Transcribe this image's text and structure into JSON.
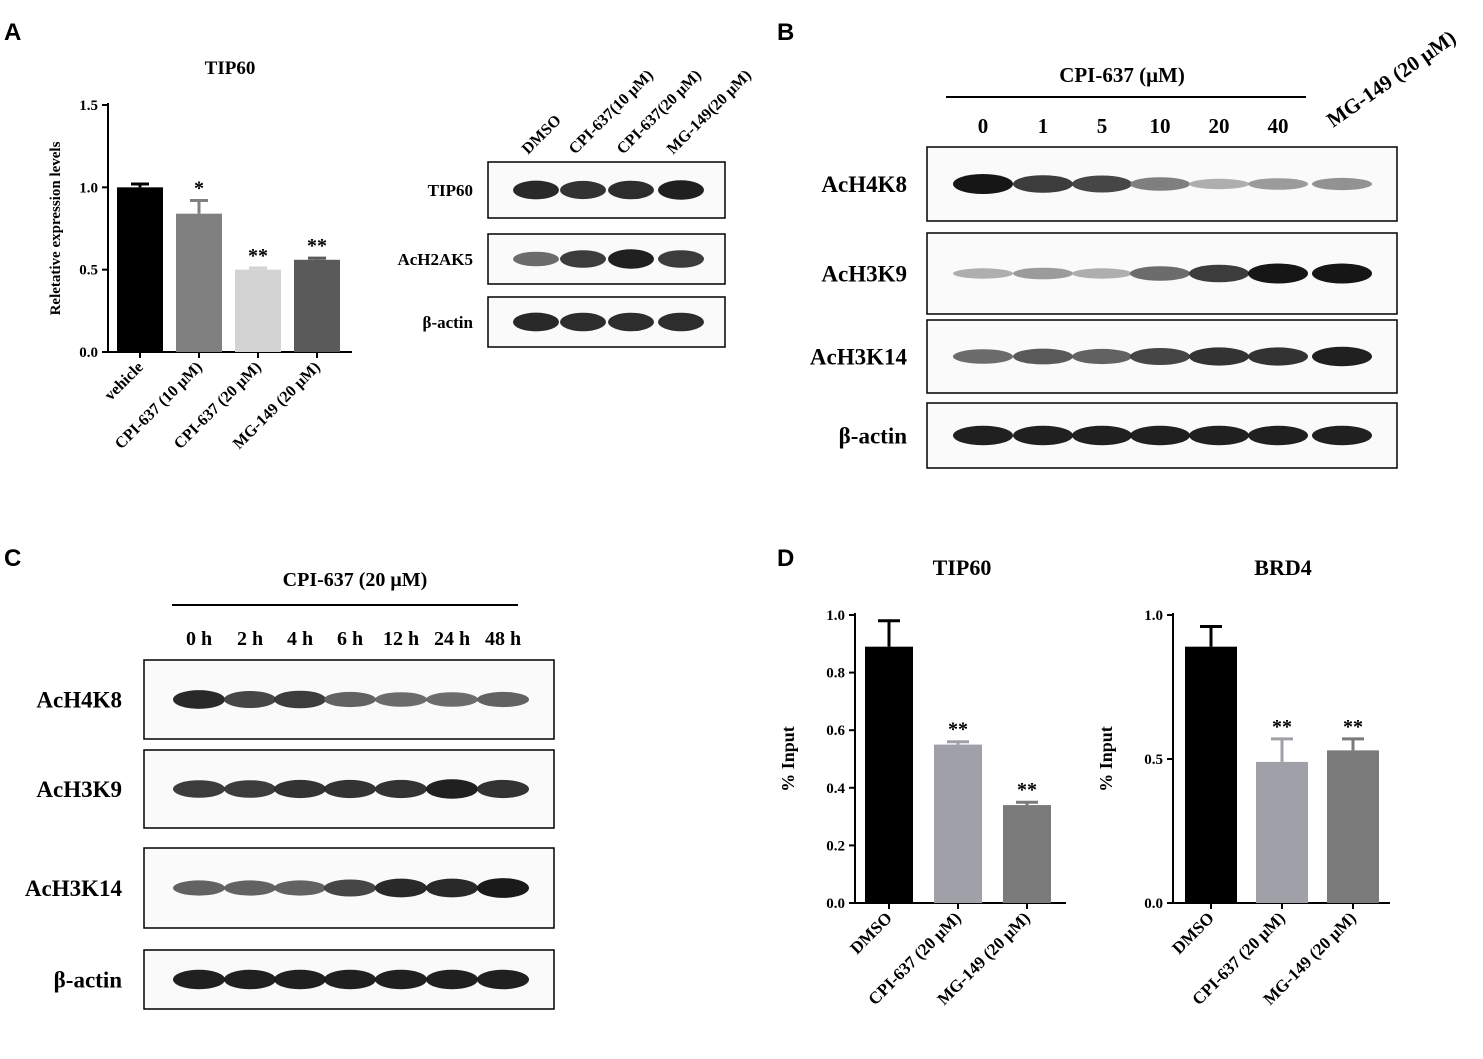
{
  "panels": [
    "A",
    "B",
    "C",
    "D"
  ],
  "chart_data": [
    {
      "type": "bar",
      "title": "TIP60",
      "ylabel": "Reletative expression levels",
      "xlabel": "",
      "ylim": [
        0,
        1.5
      ],
      "yticks": [
        "0.0",
        "0.5",
        "1.0",
        "1.5"
      ],
      "categories": [
        "vehicle",
        "CPI-637 (10 μM)",
        "CPI-637 (20 μM)",
        "MG-149 (20 μM)"
      ],
      "values": [
        1.0,
        0.84,
        0.5,
        0.56
      ],
      "errors": [
        0.02,
        0.08,
        0.01,
        0.01
      ],
      "significance": [
        "",
        "*",
        "**",
        "**"
      ],
      "colors": [
        "#000000",
        "#808080",
        "#d3d3d3",
        "#5a5a5a"
      ]
    },
    {
      "type": "bar",
      "title": "TIP60",
      "ylabel": "% Input",
      "xlabel": "",
      "ylim": [
        0,
        1.0
      ],
      "yticks": [
        "0.0",
        "0.2",
        "0.4",
        "0.6",
        "0.8",
        "1.0"
      ],
      "categories": [
        "DMSO",
        "CPI-637 (20 μM)",
        "MG-149 (20 μM)"
      ],
      "values": [
        0.89,
        0.55,
        0.34
      ],
      "errors": [
        0.09,
        0.01,
        0.01
      ],
      "significance": [
        "",
        "**",
        "**"
      ],
      "colors": [
        "#000000",
        "#a0a0a8",
        "#7a7a7a"
      ]
    },
    {
      "type": "bar",
      "title": "BRD4",
      "ylabel": "% Input",
      "xlabel": "",
      "ylim": [
        0,
        1.0
      ],
      "yticks": [
        "0.0",
        "0.5",
        "1.0"
      ],
      "categories": [
        "DMSO",
        "CPI-637 (20 μM)",
        "MG-149 (20 μM)"
      ],
      "values": [
        0.89,
        0.49,
        0.53
      ],
      "errors": [
        0.07,
        0.08,
        0.04
      ],
      "significance": [
        "",
        "**",
        "**"
      ],
      "colors": [
        "#000000",
        "#a0a0a8",
        "#7a7a7a"
      ]
    }
  ],
  "blots": {
    "a": {
      "lanes": [
        "DMSO",
        "CPI-637(10 μM)",
        "CPI-637(20 μM)",
        "MG-149(20 μM)"
      ],
      "rows": [
        {
          "label": "TIP60",
          "intensity": [
            0.9,
            0.85,
            0.88,
            0.95
          ]
        },
        {
          "label": "AcH2AK5",
          "intensity": [
            0.55,
            0.8,
            0.95,
            0.8
          ]
        },
        {
          "label": "β-actin",
          "intensity": [
            0.9,
            0.88,
            0.88,
            0.88
          ]
        }
      ]
    },
    "b": {
      "treatment": "CPI-637 (μM)",
      "extra_lane": "MG-149 (20 μM)",
      "lanes": [
        "0",
        "1",
        "5",
        "10",
        "20",
        "40"
      ],
      "rows": [
        {
          "label": "AcH4K8",
          "intensity": [
            1.0,
            0.8,
            0.75,
            0.45,
            0.2,
            0.3,
            0.35
          ]
        },
        {
          "label": "AcH3K9",
          "intensity": [
            0.2,
            0.3,
            0.2,
            0.55,
            0.8,
            1.0,
            1.0
          ]
        },
        {
          "label": "AcH3K14",
          "intensity": [
            0.55,
            0.65,
            0.6,
            0.75,
            0.85,
            0.85,
            0.95
          ]
        },
        {
          "label": "β-actin",
          "intensity": [
            0.95,
            0.95,
            0.95,
            0.95,
            0.95,
            0.95,
            0.95
          ]
        }
      ]
    },
    "c": {
      "treatment": "CPI-637 (20 μM)",
      "lanes": [
        "0 h",
        "2 h",
        "4 h",
        "6 h",
        "12 h",
        "24 h",
        "48 h"
      ],
      "rows": [
        {
          "label": "AcH4K8",
          "intensity": [
            0.9,
            0.75,
            0.8,
            0.6,
            0.55,
            0.55,
            0.6
          ]
        },
        {
          "label": "AcH3K9",
          "intensity": [
            0.8,
            0.8,
            0.85,
            0.85,
            0.85,
            0.95,
            0.85
          ]
        },
        {
          "label": "AcH3K14",
          "intensity": [
            0.6,
            0.6,
            0.6,
            0.75,
            0.9,
            0.9,
            0.98
          ]
        },
        {
          "label": "β-actin",
          "intensity": [
            0.95,
            0.95,
            0.95,
            0.95,
            0.95,
            0.95,
            0.95
          ]
        }
      ]
    }
  }
}
